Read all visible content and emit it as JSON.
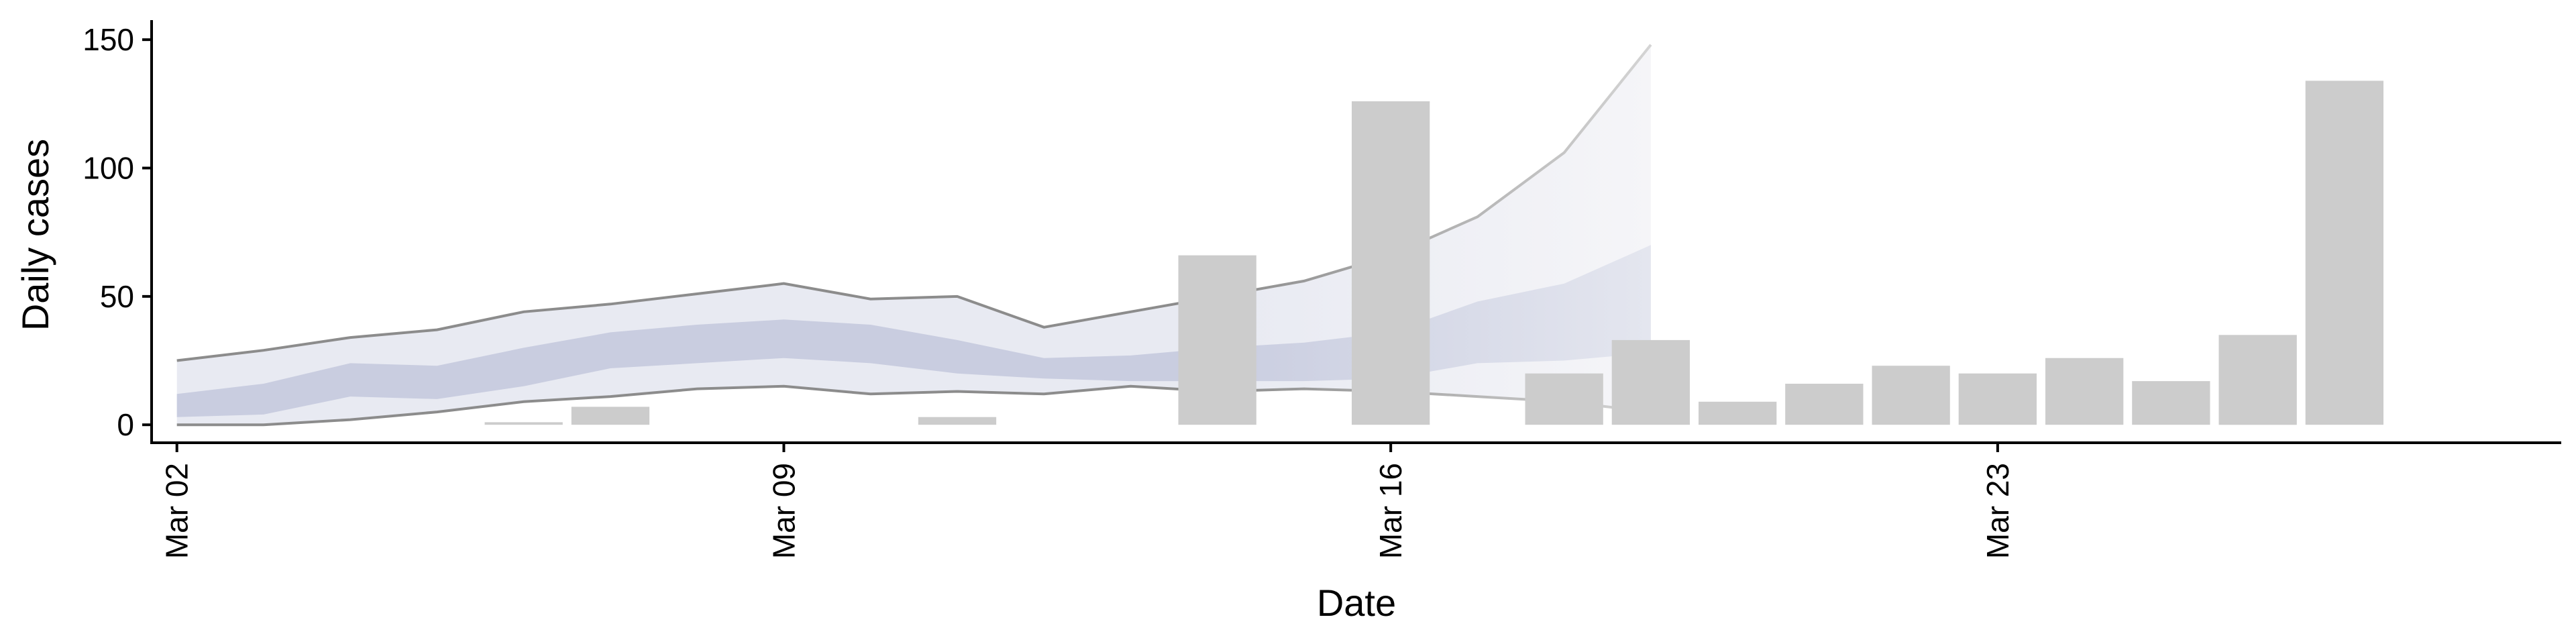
{
  "chart_data": {
    "type": "bar",
    "title": "",
    "xlabel": "Date",
    "ylabel": "Daily cases",
    "ylim": [
      -7,
      155
    ],
    "yticks": [
      0,
      50,
      100,
      150
    ],
    "xlim": [
      "2020-03-01T17:00",
      "2020-03-29T12:00"
    ],
    "xticks": [
      {
        "date": "2020-03-02",
        "label": "Mar 02"
      },
      {
        "date": "2020-03-09",
        "label": "Mar 09"
      },
      {
        "date": "2020-03-16",
        "label": "Mar 16"
      },
      {
        "date": "2020-03-23",
        "label": "Mar 23"
      }
    ],
    "grid": false,
    "legend": "none",
    "bars": {
      "name": "Daily cases",
      "color": "#cccccc",
      "x": [
        "2020-03-06",
        "2020-03-07",
        "2020-03-11",
        "2020-03-14",
        "2020-03-16",
        "2020-03-18",
        "2020-03-19",
        "2020-03-20",
        "2020-03-21",
        "2020-03-22",
        "2020-03-23",
        "2020-03-24",
        "2020-03-25",
        "2020-03-26",
        "2020-03-27"
      ],
      "values": [
        1,
        7,
        3,
        66,
        126,
        20,
        33,
        9,
        16,
        23,
        20,
        26,
        17,
        35,
        134
      ]
    },
    "fit_x": [
      "2020-03-02",
      "2020-03-03",
      "2020-03-04",
      "2020-03-05",
      "2020-03-06",
      "2020-03-07",
      "2020-03-08",
      "2020-03-09",
      "2020-03-10",
      "2020-03-11",
      "2020-03-12",
      "2020-03-13",
      "2020-03-14",
      "2020-03-15",
      "2020-03-16",
      "2020-03-17",
      "2020-03-18",
      "2020-03-19"
    ],
    "fit_upper": [
      25,
      29,
      34,
      37,
      44,
      47,
      51,
      55,
      49,
      50,
      38,
      44,
      50,
      56,
      66,
      81,
      106,
      148
    ],
    "fit_lower": [
      0,
      0,
      2,
      5,
      9,
      11,
      14,
      15,
      12,
      13,
      12,
      15,
      13,
      14,
      13,
      11,
      9,
      5
    ],
    "fit_inner_upper": [
      12,
      16,
      24,
      23,
      30,
      36,
      39,
      41,
      39,
      33,
      26,
      27,
      30,
      32,
      36,
      48,
      55,
      70
    ],
    "fit_inner_lower": [
      3,
      4,
      11,
      10,
      15,
      22,
      24,
      26,
      24,
      20,
      18,
      17,
      17,
      17,
      18,
      24,
      25,
      28
    ],
    "colors": {
      "outer_band_dark": "#e8eaf2",
      "outer_band_light": "#f5f5f8",
      "inner_band_dark": "#c9cde0",
      "inner_band_light": "#e4e6ef",
      "line_dark": "#8c8c8c",
      "line_light": "#d4d4d4",
      "axis": "#000000"
    },
    "fade_start": "2020-03-14"
  }
}
